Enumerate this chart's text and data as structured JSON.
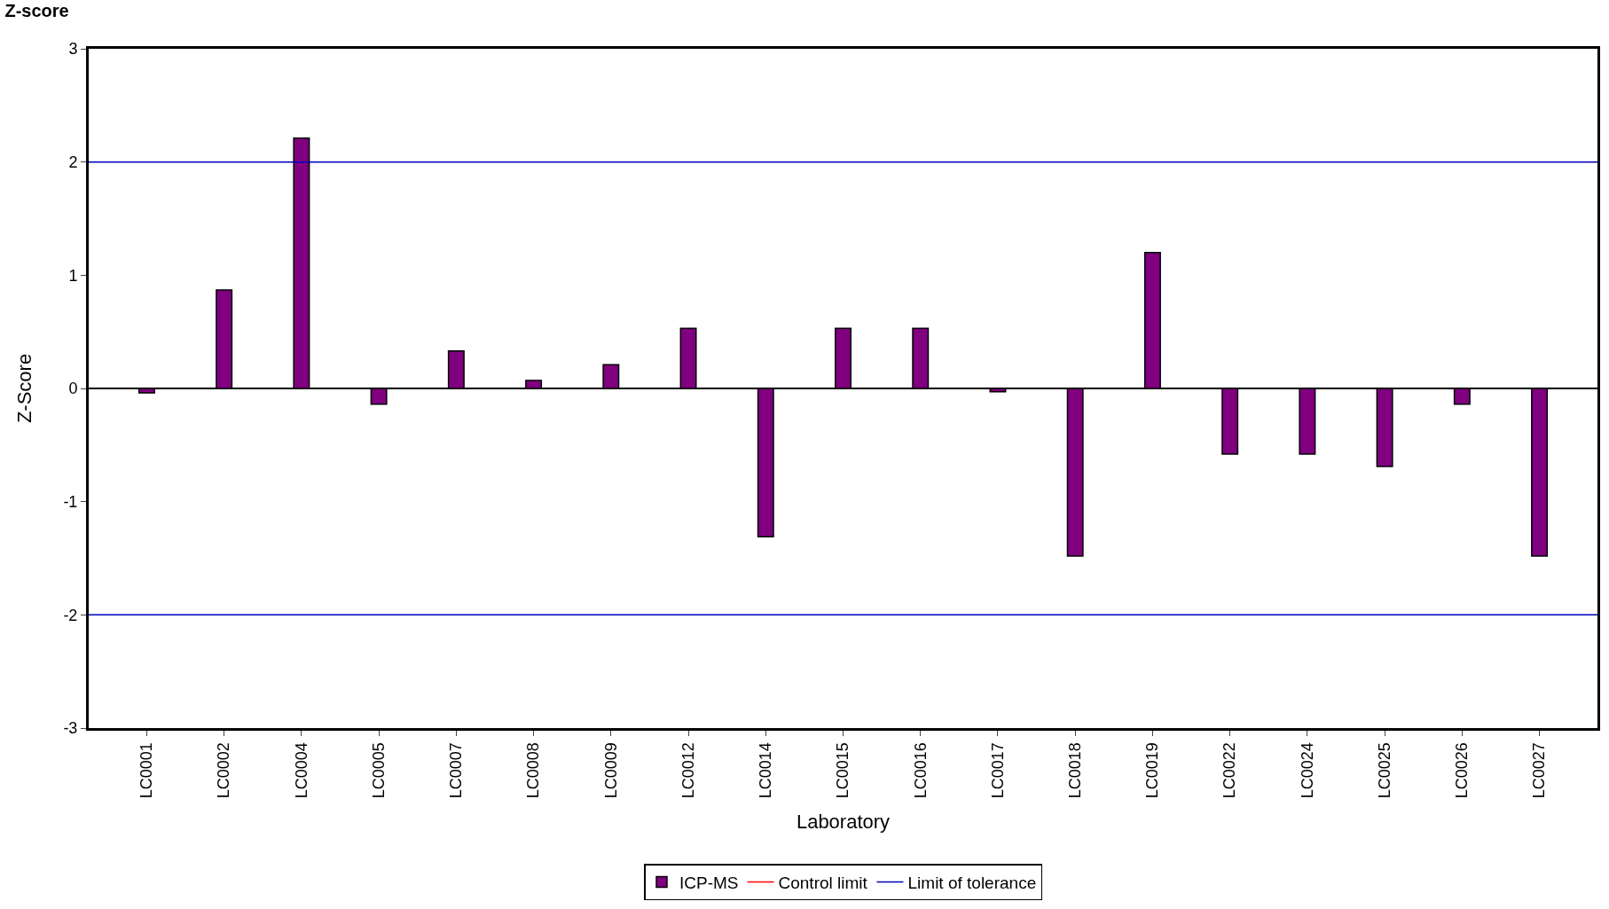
{
  "chart_data": {
    "type": "bar",
    "title": "Z-score",
    "xlabel": "Laboratory",
    "ylabel": "Z-Score",
    "categories": [
      "LC0001",
      "LC0002",
      "LC0004",
      "LC0005",
      "LC0007",
      "LC0008",
      "LC0009",
      "LC0012",
      "LC0014",
      "LC0015",
      "LC0016",
      "LC0017",
      "LC0018",
      "LC0019",
      "LC0022",
      "LC0024",
      "LC0025",
      "LC0026",
      "LC0027"
    ],
    "series": [
      {
        "name": "ICP-MS",
        "color": "#800080",
        "values": [
          -0.04,
          0.87,
          2.21,
          -0.14,
          0.33,
          0.07,
          0.21,
          0.53,
          -1.31,
          0.53,
          0.53,
          -0.03,
          -1.48,
          1.2,
          -0.58,
          -0.58,
          -0.69,
          -0.14,
          -1.48
        ]
      },
      {
        "name": "Control limit",
        "type": "line",
        "color": "#ff0000",
        "values": [
          null,
          null,
          null,
          null,
          null,
          null,
          null,
          null,
          null,
          null,
          null,
          null,
          null,
          null,
          null,
          null,
          null,
          null,
          null
        ]
      }
    ],
    "ylim": [
      -3,
      3
    ],
    "yticks": [
      -3,
      -2,
      -1,
      0,
      1,
      2,
      3
    ],
    "ref_lines": [
      {
        "axis": "y",
        "value": 2,
        "label": "Limit of tolerance",
        "color": "#0000c0"
      },
      {
        "axis": "y",
        "value": -2,
        "color": "#0000c0"
      }
    ],
    "legend": "bottom"
  }
}
